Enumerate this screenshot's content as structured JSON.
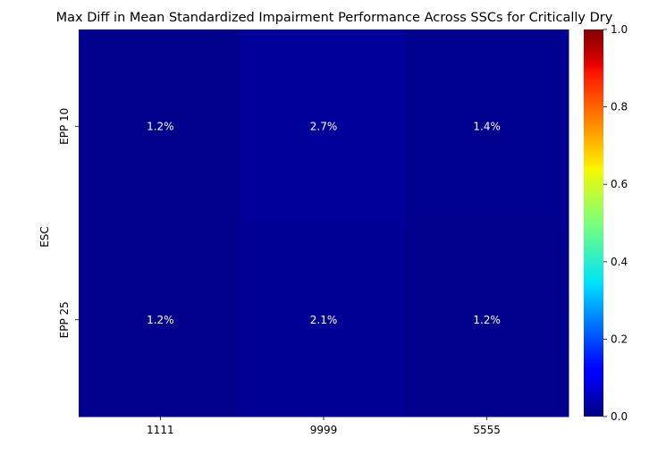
{
  "chart_data": {
    "type": "heatmap",
    "title": "Max Diff in Mean Standardized Impairment Performance Across SSCs for Critically Dry",
    "xlabel": "",
    "ylabel": "ESC",
    "x_categories": [
      "1111",
      "9999",
      "5555"
    ],
    "y_categories": [
      "EPP 10",
      "EPP 25"
    ],
    "values": [
      [
        0.012,
        0.027,
        0.014
      ],
      [
        0.012,
        0.021,
        0.012
      ]
    ],
    "annotations": [
      [
        "1.2%",
        "2.7%",
        "1.4%"
      ],
      [
        "1.2%",
        "2.1%",
        "1.2%"
      ]
    ],
    "colormap": "jet",
    "vmin": 0.0,
    "vmax": 1.0,
    "colorbar_ticks": [
      "0.0",
      "0.2",
      "0.4",
      "0.6",
      "0.8",
      "1.0"
    ],
    "colorbar_tick_values": [
      0.0,
      0.2,
      0.4,
      0.6,
      0.8,
      1.0
    ]
  }
}
